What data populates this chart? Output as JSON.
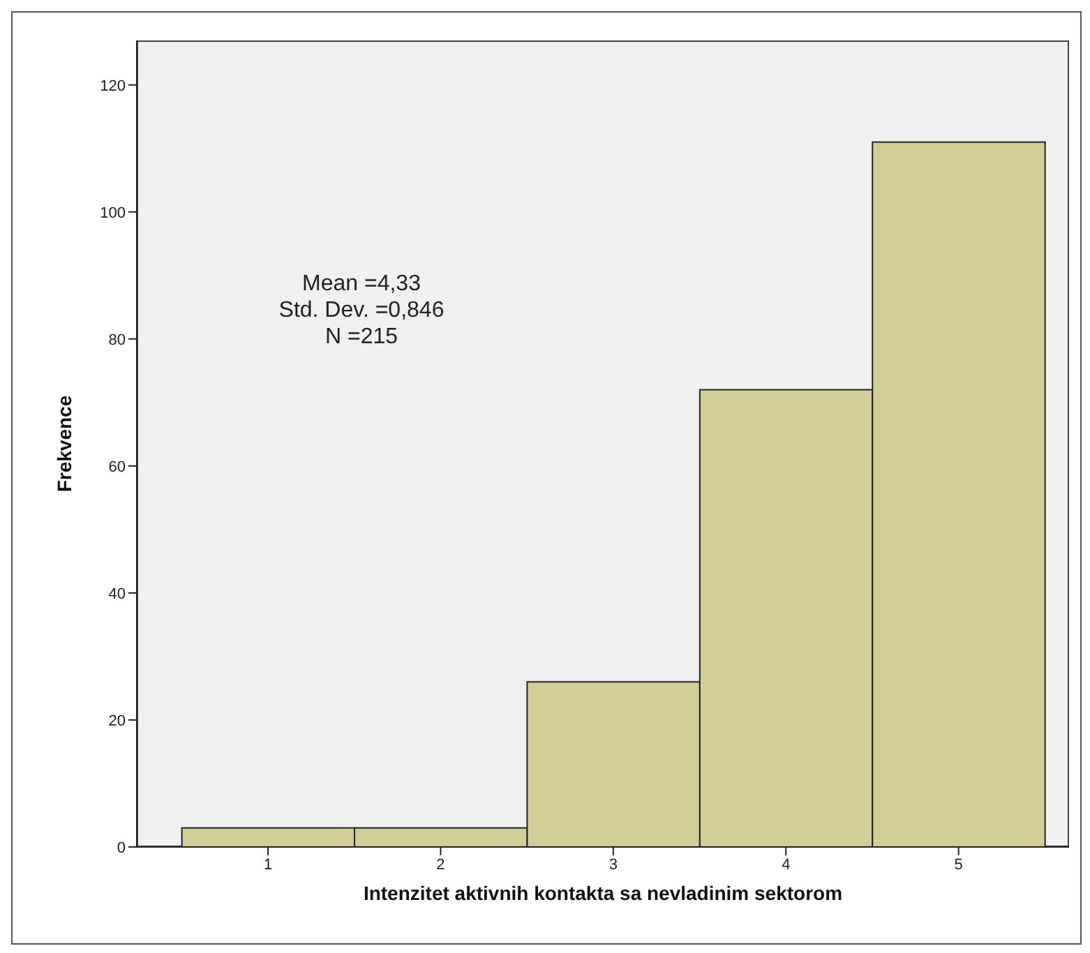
{
  "chart_data": {
    "type": "histogram",
    "xlabel": "Intenzitet aktivnih kontakta sa nevladinim sektorom",
    "ylabel": "Frekvence",
    "bins": [
      0.5,
      1.5,
      2.5,
      3.5,
      4.5,
      5.5
    ],
    "values": [
      3,
      3,
      26,
      72,
      111
    ],
    "color": "#d3ce97",
    "xlim": [
      0.24,
      5.64
    ],
    "xticks": [
      1,
      2,
      3,
      4,
      5
    ],
    "ylim": [
      0,
      127
    ],
    "yticks": [
      0,
      20,
      40,
      60,
      80,
      100,
      120
    ],
    "grid": false,
    "annotations": [
      "Mean =4,33",
      "Std. Dev. =0,846",
      "N =215"
    ]
  }
}
